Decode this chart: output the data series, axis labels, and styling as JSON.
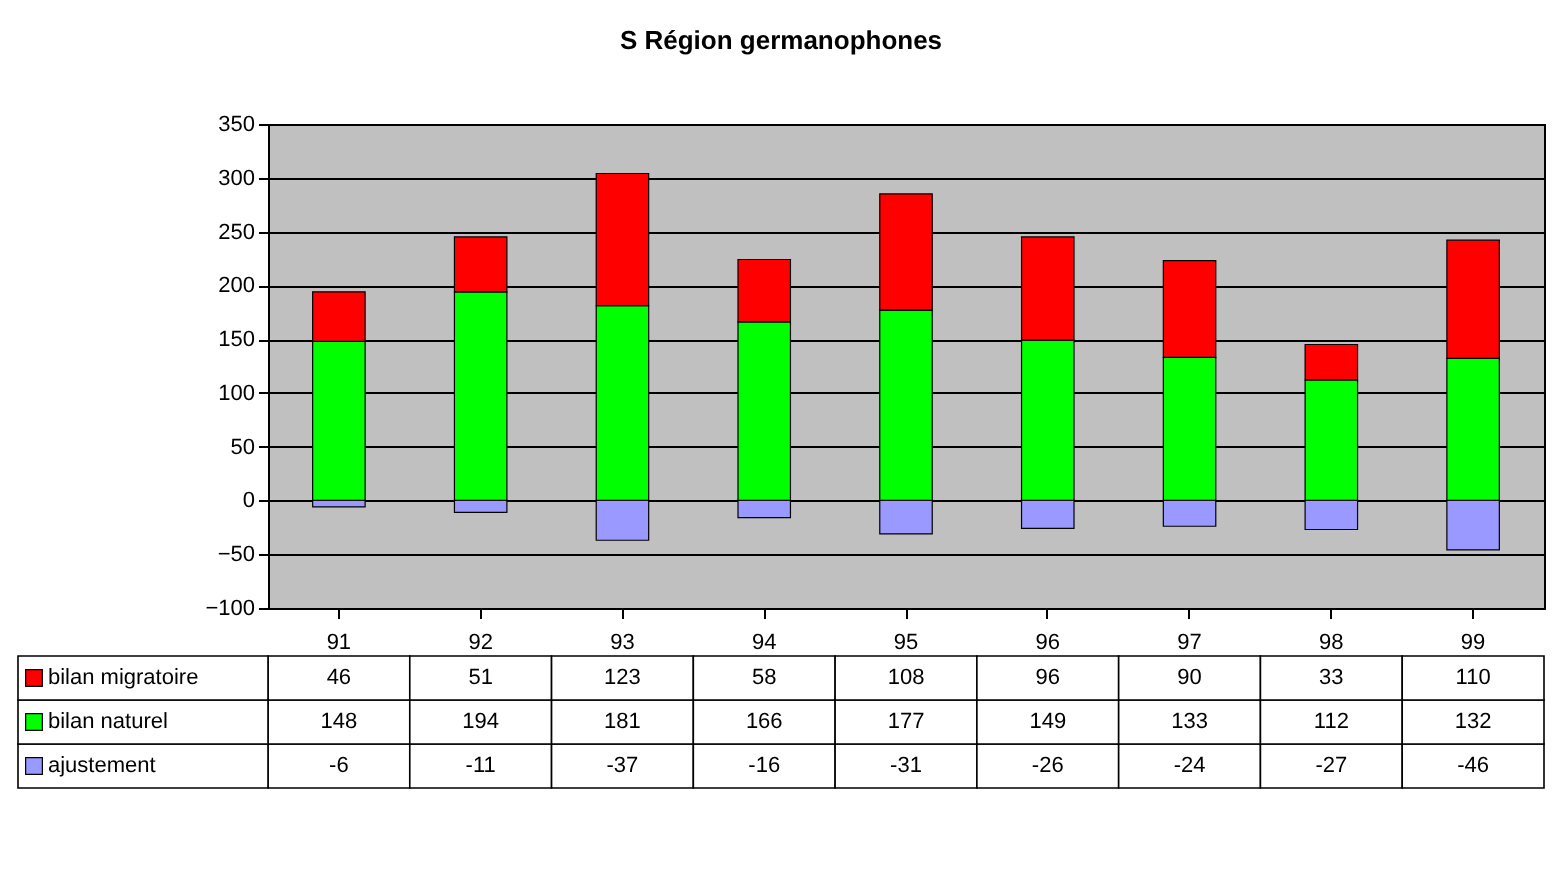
{
  "chart_data": {
    "type": "bar",
    "title": "S Région germanophones",
    "stacked": true,
    "categories": [
      "91",
      "92",
      "93",
      "94",
      "95",
      "96",
      "97",
      "98",
      "99"
    ],
    "series": [
      {
        "name": "ajustement",
        "color": "#9999ff",
        "values": [
          -6,
          -11,
          -37,
          -16,
          -31,
          -26,
          -24,
          -27,
          -46
        ]
      },
      {
        "name": "bilan naturel",
        "color": "#00ff00",
        "values": [
          148,
          194,
          181,
          166,
          177,
          149,
          133,
          112,
          132
        ]
      },
      {
        "name": "bilan migratoire",
        "color": "#ff0000",
        "values": [
          46,
          51,
          123,
          58,
          108,
          96,
          90,
          33,
          110
        ]
      }
    ],
    "ylim": [
      -100,
      350
    ],
    "yticks": [
      -100,
      -50,
      0,
      50,
      100,
      150,
      200,
      250,
      300,
      350
    ],
    "grid": "y",
    "legend": "bottom",
    "data_labels": true
  }
}
